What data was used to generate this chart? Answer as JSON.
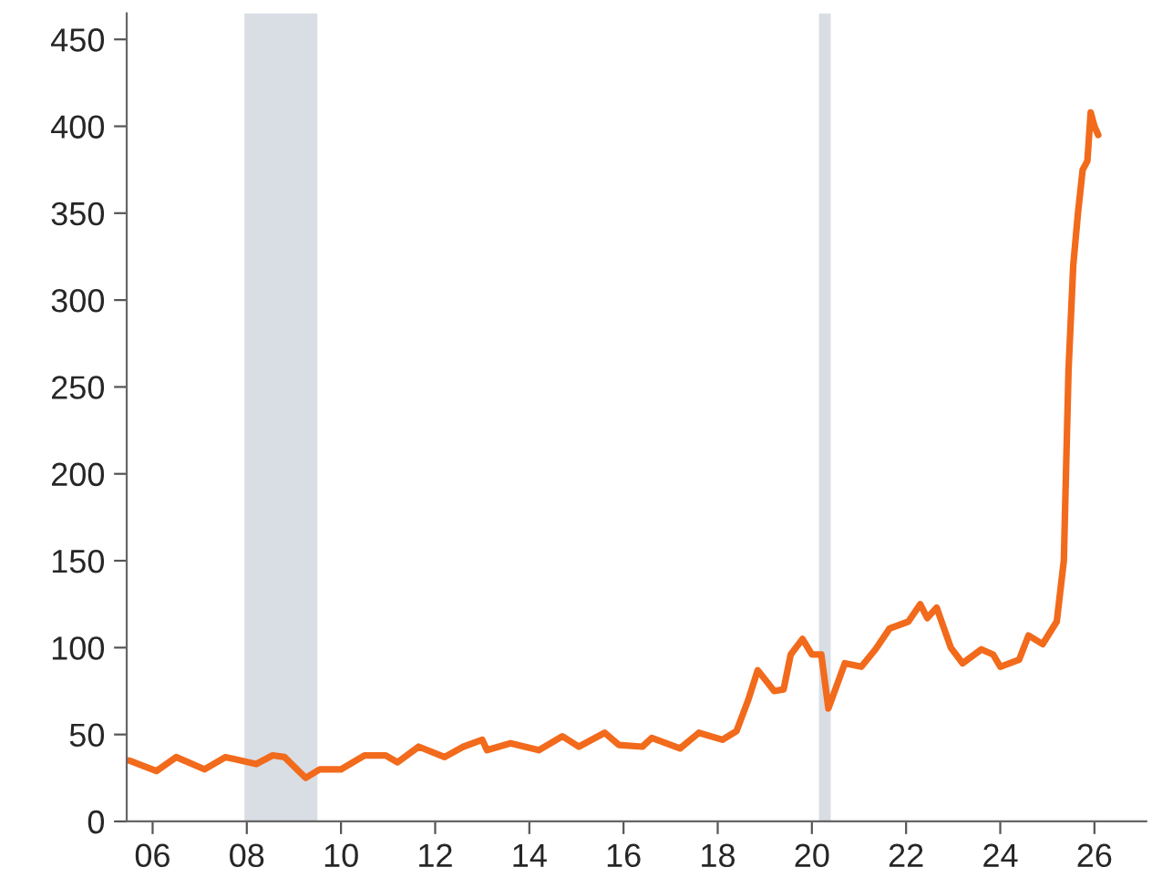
{
  "chart_data": {
    "type": "line",
    "x": [
      2005.5,
      2006.08,
      2006.5,
      2007.1,
      2007.55,
      2008.2,
      2008.55,
      2008.8,
      2009.25,
      2009.55,
      2010.0,
      2010.5,
      2010.95,
      2011.2,
      2011.65,
      2012.2,
      2012.6,
      2013.0,
      2013.1,
      2013.6,
      2014.2,
      2014.7,
      2015.05,
      2015.6,
      2015.9,
      2016.4,
      2016.6,
      2017.2,
      2017.6,
      2018.1,
      2018.4,
      2018.65,
      2018.85,
      2019.2,
      2019.4,
      2019.55,
      2019.8,
      2020.0,
      2020.2,
      2020.35,
      2020.7,
      2021.05,
      2021.35,
      2021.65,
      2022.05,
      2022.3,
      2022.45,
      2022.65,
      2022.95,
      2023.2,
      2023.6,
      2023.85,
      2024.0,
      2024.4,
      2024.6,
      2024.9,
      2025.2,
      2025.35,
      2025.45,
      2025.55,
      2025.65,
      2025.75,
      2025.85,
      2025.92,
      2026.0,
      2026.08
    ],
    "series": [
      {
        "color": "#f26a1b",
        "values": [
          35,
          29,
          37,
          30,
          37,
          33,
          38,
          37,
          25,
          30,
          30,
          38,
          38,
          34,
          43,
          37,
          43,
          47,
          41,
          45,
          41,
          49,
          43,
          51,
          44,
          43,
          48,
          42,
          51,
          47,
          52,
          70,
          87,
          75,
          76,
          96,
          105,
          96,
          96,
          65,
          91,
          89,
          99,
          111,
          115,
          125,
          117,
          123,
          100,
          91,
          99,
          96,
          89,
          93,
          107,
          102,
          115,
          150,
          260,
          320,
          350,
          375,
          380,
          408,
          400,
          395
        ]
      }
    ],
    "xlim": [
      2005.45,
      2027.1
    ],
    "xticks": [
      {
        "value": 2006,
        "label": "06"
      },
      {
        "value": 2008,
        "label": "08"
      },
      {
        "value": 2010,
        "label": "10"
      },
      {
        "value": 2012,
        "label": "12"
      },
      {
        "value": 2014,
        "label": "14"
      },
      {
        "value": 2016,
        "label": "16"
      },
      {
        "value": 2018,
        "label": "18"
      },
      {
        "value": 2020,
        "label": "20"
      },
      {
        "value": 2022,
        "label": "22"
      },
      {
        "value": 2024,
        "label": "24"
      },
      {
        "value": 2026,
        "label": "26"
      }
    ],
    "ylim": [
      0,
      465
    ],
    "yticks": [
      0,
      50,
      100,
      150,
      200,
      250,
      300,
      350,
      400,
      450
    ],
    "bands": [
      {
        "axis": "x",
        "from": 2007.95,
        "to": 2009.5,
        "color": "#d9dde4"
      },
      {
        "axis": "x",
        "from": 2020.15,
        "to": 2020.4,
        "color": "#d9dde4"
      }
    ],
    "grid": false,
    "legend": false
  }
}
